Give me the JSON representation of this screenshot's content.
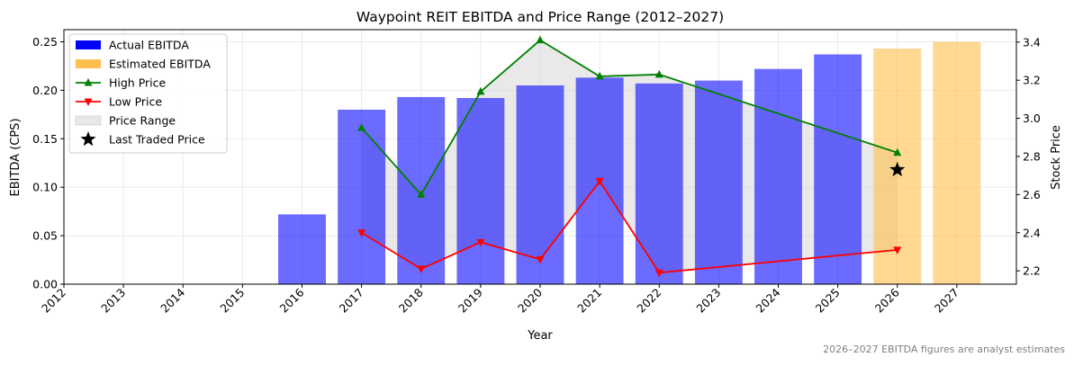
{
  "chart_data": {
    "type": "bar",
    "title": "Waypoint REIT EBITDA and Price Range (2012–2027)",
    "xlabel": "Year",
    "ylabel": "EBITDA (CPS)",
    "y2label": "Stock Price",
    "ylim": [
      0,
      0.2625
    ],
    "y2lim": [
      2.13,
      3.465
    ],
    "xlim": [
      2012,
      2028
    ],
    "yticks": [
      "0.00",
      "0.05",
      "0.10",
      "0.15",
      "0.20",
      "0.25"
    ],
    "y2ticks": [
      "2.2",
      "2.4",
      "2.6",
      "2.8",
      "3.0",
      "3.2",
      "3.4"
    ],
    "years": [
      "2012",
      "2013",
      "2014",
      "2015",
      "2016",
      "2017",
      "2018",
      "2019",
      "2020",
      "2021",
      "2022",
      "2023",
      "2024",
      "2025",
      "2026",
      "2027"
    ],
    "grid": true,
    "legend_position": "top-left",
    "actual_ebitda": {
      "name": "Actual EBITDA",
      "color": "#0000ff",
      "points": [
        {
          "x": 2016,
          "y": 0.072
        },
        {
          "x": 2017,
          "y": 0.18
        },
        {
          "x": 2018,
          "y": 0.193
        },
        {
          "x": 2019,
          "y": 0.192
        },
        {
          "x": 2020,
          "y": 0.205
        },
        {
          "x": 2021,
          "y": 0.213
        },
        {
          "x": 2022,
          "y": 0.207
        },
        {
          "x": 2023,
          "y": 0.21
        },
        {
          "x": 2024,
          "y": 0.222
        },
        {
          "x": 2025,
          "y": 0.237
        }
      ]
    },
    "estimated_ebitda": {
      "name": "Estimated EBITDA",
      "color": "#ffbb44",
      "points": [
        {
          "x": 2026,
          "y": 0.243
        },
        {
          "x": 2027,
          "y": 0.25
        }
      ]
    },
    "high_price": {
      "name": "High Price",
      "color": "#008000",
      "points": [
        {
          "x": 2017,
          "y": 2.95
        },
        {
          "x": 2018,
          "y": 2.6
        },
        {
          "x": 2019,
          "y": 3.14
        },
        {
          "x": 2020,
          "y": 3.41
        },
        {
          "x": 2021,
          "y": 3.22
        },
        {
          "x": 2022,
          "y": 3.23
        },
        {
          "x": 2026,
          "y": 2.82
        }
      ]
    },
    "low_price": {
      "name": "Low Price",
      "color": "#ff0000",
      "points": [
        {
          "x": 2017,
          "y": 2.4
        },
        {
          "x": 2018,
          "y": 2.21
        },
        {
          "x": 2019,
          "y": 2.35
        },
        {
          "x": 2020,
          "y": 2.26
        },
        {
          "x": 2021,
          "y": 2.67
        },
        {
          "x": 2022,
          "y": 2.19
        },
        {
          "x": 2026,
          "y": 2.31
        }
      ]
    },
    "price_range": {
      "name": "Price Range",
      "color": "#d3d3d3"
    },
    "last_traded_price": {
      "name": "Last Traded Price",
      "x": 2026,
      "y": 2.73,
      "color": "#000000"
    },
    "footnote": "2026–2027 EBITDA figures are analyst estimates"
  }
}
